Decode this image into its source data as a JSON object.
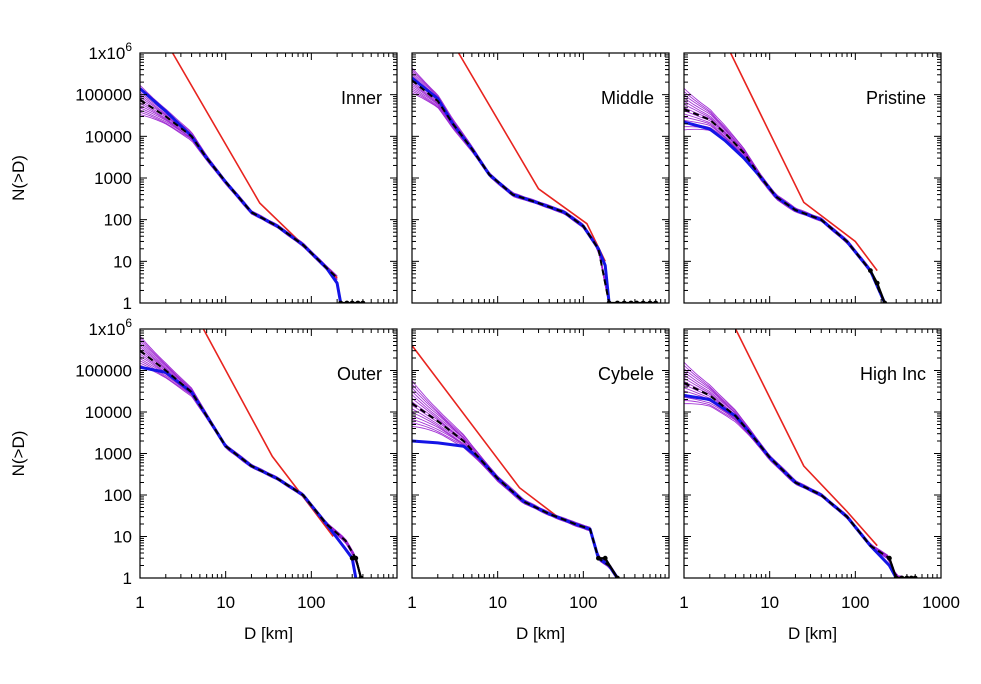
{
  "figure": {
    "ylabel": "N(>D)",
    "xlabel": "D [km]"
  },
  "colors": {
    "ref": "#e8241f",
    "ensemble": "#9a1fd0",
    "blue": "#1414e6",
    "mean": "#000000",
    "frame": "#000000"
  },
  "x_ticks": [
    {
      "value": 1,
      "label": "1"
    },
    {
      "value": 10,
      "label": "10"
    },
    {
      "value": 100,
      "label": "100"
    },
    {
      "value": 1000,
      "label": "1000"
    }
  ],
  "y_ticks": [
    {
      "value": 1000000,
      "base": "1x10",
      "exp": "6"
    },
    {
      "value": 100000,
      "label": "100000"
    },
    {
      "value": 10000,
      "label": "10000"
    },
    {
      "value": 1000,
      "label": "1000"
    },
    {
      "value": 100,
      "label": "100"
    },
    {
      "value": 10,
      "label": "10"
    },
    {
      "value": 1,
      "label": "1"
    }
  ],
  "chart_data": [
    {
      "type": "line",
      "title": "Inner",
      "xscale": "log",
      "yscale": "log",
      "xlim": [
        1,
        1000
      ],
      "ylim": [
        1,
        1000000
      ],
      "ref_line": {
        "x": [
          2.4,
          25,
          80,
          200
        ],
        "y": [
          1000000,
          250,
          25,
          4
        ]
      },
      "mean_curve": {
        "x": [
          1,
          2,
          4,
          6,
          10,
          20,
          40,
          80,
          150,
          200
        ],
        "y": [
          75000,
          30000,
          10000,
          3000,
          800,
          150,
          70,
          25,
          7,
          4
        ]
      },
      "blue_curve": {
        "x": [
          1,
          2,
          4,
          6,
          10,
          20,
          40,
          80,
          150,
          200,
          220
        ],
        "y": [
          140000,
          40000,
          10000,
          3000,
          800,
          150,
          70,
          25,
          7,
          3,
          1
        ]
      },
      "ensemble_spread": 0.35,
      "tail_points": {
        "x": [
          220,
          260,
          300,
          350,
          400
        ],
        "y": [
          1,
          1,
          1,
          1,
          1
        ]
      }
    },
    {
      "type": "line",
      "title": "Middle",
      "xscale": "log",
      "yscale": "log",
      "xlim": [
        1,
        1000
      ],
      "ylim": [
        1,
        1000000
      ],
      "ref_line": {
        "x": [
          3.5,
          30,
          110,
          180
        ],
        "y": [
          1000000,
          550,
          80,
          10
        ]
      },
      "mean_curve": {
        "x": [
          1,
          2,
          3,
          5,
          8,
          15,
          30,
          60,
          100,
          150,
          200
        ],
        "y": [
          220000,
          70000,
          20000,
          5000,
          1200,
          400,
          250,
          150,
          70,
          20,
          1
        ]
      },
      "blue_curve": {
        "x": [
          1,
          2,
          3,
          5,
          8,
          15,
          30,
          60,
          100,
          150,
          180,
          200
        ],
        "y": [
          250000,
          80000,
          20000,
          5000,
          1200,
          400,
          250,
          150,
          70,
          20,
          8,
          1
        ]
      },
      "ensemble_spread": 0.3,
      "tail_points": {
        "x": [
          200,
          250,
          300,
          360,
          420,
          500,
          600,
          700
        ],
        "y": [
          1,
          1,
          1,
          1,
          1,
          1,
          1,
          1
        ]
      }
    },
    {
      "type": "line",
      "title": "Pristine",
      "xscale": "log",
      "yscale": "log",
      "xlim": [
        1,
        1000
      ],
      "ylim": [
        1,
        1000000
      ],
      "ref_line": {
        "x": [
          3.5,
          25,
          100,
          180
        ],
        "y": [
          1000000,
          260,
          30,
          6
        ]
      },
      "mean_curve": {
        "x": [
          1,
          2,
          3,
          5,
          8,
          12,
          20,
          40,
          80,
          150,
          220
        ],
        "y": [
          45000,
          25000,
          12000,
          4000,
          1000,
          350,
          170,
          100,
          30,
          6,
          1
        ]
      },
      "blue_curve": {
        "x": [
          1,
          2,
          3,
          5,
          8,
          12,
          20,
          40,
          80,
          150,
          220
        ],
        "y": [
          22000,
          15000,
          8000,
          3000,
          1000,
          350,
          170,
          100,
          30,
          6,
          1
        ]
      },
      "ensemble_spread": 0.5,
      "tail_points": {
        "x": [
          150,
          180,
          220
        ],
        "y": [
          6,
          3,
          1
        ]
      }
    },
    {
      "type": "line",
      "title": "Outer",
      "xscale": "log",
      "yscale": "log",
      "xlim": [
        1,
        1000
      ],
      "ylim": [
        1,
        1000000
      ],
      "ref_line": {
        "x": [
          5.5,
          35,
          100,
          180
        ],
        "y": [
          1000000,
          850,
          50,
          10
        ]
      },
      "mean_curve": {
        "x": [
          1,
          2,
          4,
          6,
          10,
          20,
          40,
          80,
          150,
          250,
          330,
          380
        ],
        "y": [
          300000,
          100000,
          30000,
          8000,
          1500,
          500,
          250,
          100,
          20,
          8,
          3,
          1
        ]
      },
      "blue_curve": {
        "x": [
          1,
          2,
          4,
          6,
          10,
          20,
          40,
          80,
          150,
          250,
          300,
          330
        ],
        "y": [
          120000,
          90000,
          30000,
          8000,
          1500,
          500,
          250,
          100,
          20,
          5,
          3,
          1
        ]
      },
      "ensemble_spread": 0.35,
      "tail_points": {
        "x": [
          300,
          330,
          380
        ],
        "y": [
          3,
          3,
          1
        ]
      }
    },
    {
      "type": "line",
      "title": "Cybele",
      "xscale": "log",
      "yscale": "log",
      "xlim": [
        1,
        1000
      ],
      "ylim": [
        1,
        1000000
      ],
      "ref_line": {
        "x": [
          1,
          18,
          50
        ],
        "y": [
          400000,
          150,
          30
        ]
      },
      "mean_curve": {
        "x": [
          1,
          2,
          4,
          6,
          10,
          20,
          40,
          80,
          120,
          150,
          200,
          250
        ],
        "y": [
          16000,
          6000,
          2000,
          800,
          250,
          70,
          35,
          20,
          15,
          3,
          2,
          1
        ]
      },
      "blue_curve": {
        "x": [
          1,
          2,
          4,
          6,
          10,
          20,
          40,
          80,
          120,
          150,
          200,
          250
        ],
        "y": [
          2000,
          1800,
          1500,
          800,
          250,
          70,
          35,
          20,
          15,
          3,
          2,
          1
        ]
      },
      "ensemble_spread": 0.55,
      "tail_points": {
        "x": [
          150,
          180,
          250
        ],
        "y": [
          3,
          3,
          1
        ]
      }
    },
    {
      "type": "line",
      "title": "High Inc",
      "xscale": "log",
      "yscale": "log",
      "xlim": [
        1,
        1000
      ],
      "ylim": [
        1,
        1000000
      ],
      "ref_line": {
        "x": [
          4,
          25,
          80,
          180
        ],
        "y": [
          1000000,
          500,
          40,
          6
        ]
      },
      "mean_curve": {
        "x": [
          1,
          2,
          4,
          6,
          10,
          20,
          40,
          80,
          150,
          250,
          300,
          350
        ],
        "y": [
          50000,
          25000,
          8000,
          3000,
          800,
          200,
          100,
          30,
          6,
          3,
          1,
          1
        ]
      },
      "blue_curve": {
        "x": [
          1,
          2,
          4,
          6,
          10,
          20,
          40,
          80,
          150,
          250,
          300
        ],
        "y": [
          25000,
          20000,
          8000,
          3000,
          800,
          200,
          100,
          30,
          6,
          2,
          1
        ]
      },
      "ensemble_spread": 0.5,
      "tail_points": {
        "x": [
          250,
          300,
          350,
          400,
          450,
          500
        ],
        "y": [
          3,
          1,
          1,
          1,
          1,
          1
        ]
      }
    }
  ]
}
